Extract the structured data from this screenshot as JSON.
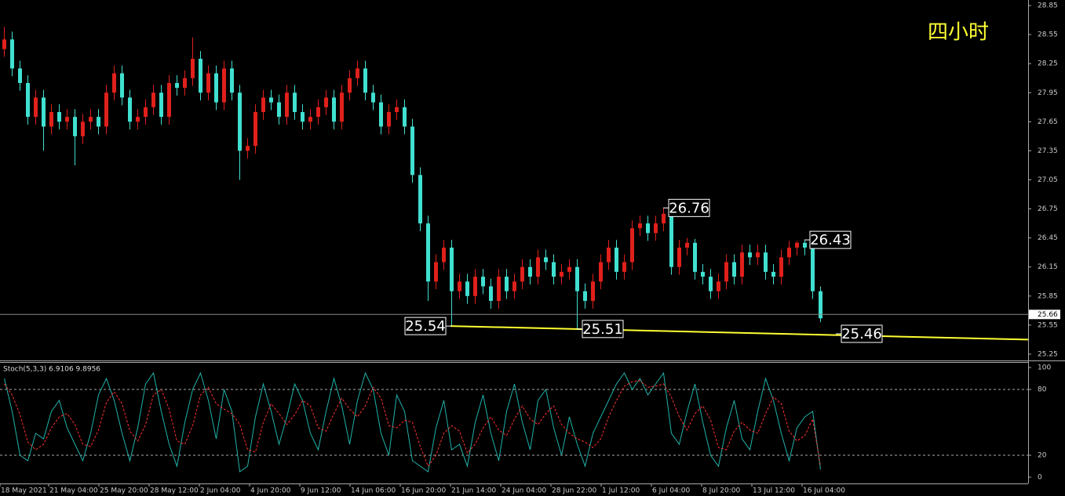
{
  "chart_data": [
    {
      "type": "candlestick",
      "title": "四小时",
      "title_color": "#ffff33",
      "up_color": "#e0201b",
      "down_color": "#40e0d0",
      "xlim": [
        -0.5,
        130.5
      ],
      "xticks": [
        {
          "value": -0.5,
          "label": "18 May 2021"
        },
        {
          "value": 5.7,
          "label": "21 May 04:00"
        },
        {
          "value": 12.1,
          "label": "25 May 20:00"
        },
        {
          "value": 18.5,
          "label": "28 May 12:00"
        },
        {
          "value": 24.9,
          "label": "2 Jun 04:00"
        },
        {
          "value": 31.3,
          "label": "4 Jun 20:00"
        },
        {
          "value": 37.7,
          "label": "9 Jun 12:00"
        },
        {
          "value": 44.1,
          "label": "14 Jun 06:00"
        },
        {
          "value": 50.5,
          "label": "16 Jun 20:00"
        },
        {
          "value": 56.9,
          "label": "21 Jun 14:00"
        },
        {
          "value": 63.3,
          "label": "24 Jun 04:00"
        },
        {
          "value": 69.7,
          "label": "28 Jun 22:00"
        },
        {
          "value": 76.1,
          "label": "1 Jul 12:00"
        },
        {
          "value": 82.5,
          "label": "6 Jul 04:00"
        },
        {
          "value": 88.9,
          "label": "8 Jul 20:00"
        },
        {
          "value": 95.3,
          "label": "13 Jul 12:00"
        },
        {
          "value": 101.7,
          "label": "16 Jul 04:00"
        }
      ],
      "ylim": [
        25.185,
        28.907
      ],
      "yticks": [
        28.85,
        28.55,
        28.25,
        27.95,
        27.65,
        27.35,
        27.05,
        26.75,
        26.45,
        26.15,
        25.85,
        25.55,
        25.25
      ],
      "open": [
        28.4,
        28.5,
        28.2,
        28.05,
        27.7,
        27.9,
        27.6,
        27.75,
        27.65,
        27.7,
        27.5,
        27.65,
        27.7,
        27.6,
        27.95,
        28.15,
        27.9,
        27.65,
        27.7,
        27.8,
        27.95,
        27.7,
        28.05,
        28.0,
        28.1,
        28.3,
        27.95,
        28.15,
        27.85,
        28.2,
        27.95,
        27.35,
        27.4,
        27.75,
        27.9,
        27.85,
        27.7,
        27.95,
        27.75,
        27.65,
        27.7,
        27.8,
        27.9,
        27.65,
        27.95,
        28.1,
        28.2,
        27.95,
        27.85,
        27.6,
        27.75,
        27.8,
        27.6,
        27.1,
        26.6,
        26.0,
        26.2,
        26.35,
        25.9,
        26.0,
        25.85,
        26.05,
        25.95,
        25.8,
        26.05,
        25.9,
        26.0,
        26.15,
        26.05,
        26.25,
        26.2,
        26.05,
        26.1,
        26.15,
        25.9,
        25.8,
        26.0,
        26.2,
        26.35,
        26.1,
        26.2,
        26.55,
        26.6,
        26.5,
        26.6,
        26.7,
        26.15,
        26.35,
        26.4,
        26.1,
        26.05,
        25.9,
        26.0,
        26.2,
        26.05,
        26.3,
        26.25,
        26.3,
        26.1,
        26.05,
        26.25,
        26.35,
        26.4,
        26.35,
        25.9
      ],
      "high": [
        28.63,
        28.58,
        28.28,
        28.13,
        27.98,
        27.98,
        27.83,
        27.83,
        27.78,
        27.78,
        27.73,
        27.78,
        27.78,
        28.03,
        28.23,
        28.23,
        27.98,
        27.78,
        27.88,
        28.03,
        28.03,
        28.13,
        28.13,
        28.18,
        28.52,
        28.38,
        28.23,
        28.23,
        28.28,
        28.28,
        28.03,
        27.48,
        27.83,
        27.98,
        27.98,
        27.93,
        28.03,
        28.03,
        27.83,
        27.78,
        27.88,
        27.98,
        27.98,
        28.03,
        28.18,
        28.28,
        28.28,
        28.03,
        27.93,
        27.83,
        27.88,
        27.88,
        27.68,
        27.18,
        26.68,
        26.28,
        26.43,
        26.43,
        26.08,
        26.08,
        26.13,
        26.13,
        26.03,
        26.13,
        26.13,
        26.08,
        26.23,
        26.23,
        26.33,
        26.33,
        26.28,
        26.18,
        26.23,
        26.23,
        25.98,
        26.08,
        26.28,
        26.43,
        26.43,
        26.28,
        26.63,
        26.68,
        26.68,
        26.68,
        26.76,
        26.72,
        26.43,
        26.45,
        26.44,
        26.18,
        26.13,
        26.08,
        26.28,
        26.28,
        26.38,
        26.38,
        26.38,
        26.38,
        26.18,
        26.33,
        26.42,
        26.42,
        26.43,
        26.4,
        25.95
      ],
      "low": [
        28.32,
        28.12,
        27.97,
        27.62,
        27.62,
        27.35,
        27.52,
        27.57,
        27.57,
        27.2,
        27.42,
        27.57,
        27.52,
        27.52,
        27.87,
        27.82,
        27.57,
        27.57,
        27.62,
        27.72,
        27.62,
        27.62,
        27.92,
        27.92,
        28.02,
        27.87,
        27.87,
        27.77,
        27.77,
        27.87,
        27.05,
        27.27,
        27.32,
        27.67,
        27.77,
        27.62,
        27.62,
        27.67,
        27.57,
        27.57,
        27.62,
        27.72,
        27.57,
        27.57,
        27.87,
        28.02,
        27.87,
        27.77,
        27.52,
        27.52,
        27.67,
        27.52,
        27.02,
        26.52,
        25.8,
        25.92,
        26.12,
        25.54,
        25.82,
        25.77,
        25.77,
        25.87,
        25.72,
        25.72,
        25.82,
        25.82,
        25.92,
        25.97,
        25.97,
        26.12,
        25.97,
        25.97,
        26.02,
        25.51,
        25.72,
        25.72,
        25.92,
        26.12,
        26.02,
        26.02,
        26.12,
        26.47,
        26.42,
        26.42,
        26.52,
        26.07,
        26.07,
        26.27,
        26.02,
        25.97,
        25.82,
        25.82,
        25.92,
        25.97,
        25.97,
        26.17,
        26.17,
        26.02,
        25.97,
        25.97,
        26.17,
        26.27,
        26.27,
        25.82,
        25.58
      ],
      "close": [
        28.5,
        28.2,
        28.05,
        27.7,
        27.9,
        27.6,
        27.75,
        27.65,
        27.7,
        27.5,
        27.65,
        27.7,
        27.6,
        27.95,
        28.15,
        27.9,
        27.65,
        27.7,
        27.8,
        27.95,
        27.7,
        28.05,
        28.0,
        28.1,
        28.3,
        27.95,
        28.15,
        27.85,
        28.2,
        27.95,
        27.35,
        27.4,
        27.75,
        27.9,
        27.85,
        27.7,
        27.95,
        27.75,
        27.65,
        27.7,
        27.8,
        27.9,
        27.65,
        27.95,
        28.1,
        28.2,
        27.95,
        27.85,
        27.6,
        27.75,
        27.8,
        27.6,
        27.1,
        26.6,
        26.0,
        26.2,
        26.35,
        25.9,
        26.0,
        25.85,
        26.05,
        25.95,
        25.8,
        26.05,
        25.9,
        26.0,
        26.15,
        26.05,
        26.25,
        26.2,
        26.05,
        26.1,
        26.15,
        25.9,
        25.8,
        26.0,
        26.2,
        26.35,
        26.1,
        26.2,
        26.55,
        26.6,
        26.5,
        26.6,
        26.7,
        26.15,
        26.35,
        26.4,
        26.1,
        26.05,
        25.9,
        26.0,
        26.2,
        26.05,
        26.3,
        26.25,
        26.3,
        26.1,
        26.05,
        26.25,
        26.35,
        26.4,
        26.35,
        25.9,
        25.62
      ],
      "current_price": 25.66,
      "trendline": {
        "color": "#ffff33",
        "x": [
          56.9,
          130.5
        ],
        "y": [
          25.54,
          25.4
        ]
      },
      "price_labels": [
        {
          "x": 84,
          "value": 26.76
        },
        {
          "x": 102,
          "value": 26.43
        },
        {
          "x": 57,
          "value": 25.54
        },
        {
          "x": 73,
          "value": 25.51
        },
        {
          "x": 106,
          "value": 25.46
        }
      ]
    },
    {
      "type": "line",
      "title": "Stoch(5,3,3) 6.9106 9.8956",
      "ylim": [
        -5.7,
        104.3
      ],
      "yticks": [
        100,
        80,
        20,
        0
      ],
      "levels": [
        20,
        80
      ],
      "series": [
        {
          "color": "#20b2aa",
          "values": [
            90,
            60,
            20,
            15,
            40,
            35,
            60,
            70,
            45,
            30,
            15,
            40,
            75,
            90,
            70,
            40,
            15,
            45,
            85,
            95,
            60,
            30,
            10,
            50,
            80,
            95,
            70,
            35,
            80,
            60,
            5,
            10,
            55,
            85,
            60,
            30,
            55,
            85,
            70,
            40,
            25,
            60,
            90,
            65,
            30,
            70,
            95,
            80,
            40,
            20,
            75,
            60,
            15,
            10,
            5,
            45,
            70,
            25,
            30,
            10,
            50,
            75,
            40,
            15,
            60,
            85,
            50,
            25,
            70,
            80,
            45,
            20,
            55,
            30,
            10,
            40,
            55,
            70,
            85,
            95,
            80,
            90,
            75,
            85,
            95,
            40,
            30,
            60,
            85,
            50,
            20,
            10,
            45,
            70,
            35,
            25,
            60,
            90,
            70,
            40,
            15,
            45,
            55,
            60,
            6.9106
          ]
        },
        {
          "color": "#ff3030",
          "dash": true,
          "values": [
            85,
            75,
            57,
            32,
            25,
            30,
            45,
            55,
            58,
            48,
            30,
            28,
            43,
            68,
            78,
            67,
            42,
            33,
            48,
            75,
            80,
            62,
            33,
            30,
            47,
            75,
            82,
            67,
            62,
            58,
            48,
            25,
            23,
            50,
            67,
            58,
            48,
            57,
            70,
            65,
            45,
            42,
            58,
            72,
            62,
            55,
            65,
            82,
            72,
            47,
            45,
            52,
            50,
            28,
            10,
            20,
            40,
            47,
            42,
            22,
            30,
            45,
            55,
            43,
            38,
            53,
            65,
            53,
            48,
            58,
            65,
            48,
            40,
            35,
            32,
            27,
            35,
            55,
            70,
            83,
            87,
            88,
            82,
            83,
            85,
            73,
            55,
            43,
            58,
            65,
            52,
            27,
            25,
            42,
            50,
            43,
            40,
            58,
            73,
            67,
            42,
            33,
            38,
            53,
            9.8956
          ]
        }
      ]
    }
  ]
}
